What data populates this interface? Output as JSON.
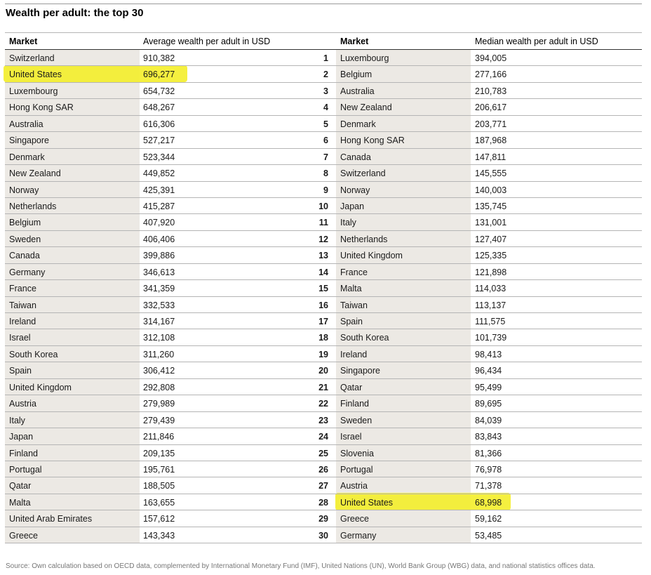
{
  "title": "Wealth per adult: the top 30",
  "headers": {
    "market_left": "Market",
    "average": "Average wealth per adult in USD",
    "market_right": "Market",
    "median": "Median wealth per adult in USD"
  },
  "highlight_color": "#f4ee2a",
  "rows": [
    {
      "avg_market": "Switzerland",
      "avg_value": "910,382",
      "rank": "1",
      "med_market": "Luxembourg",
      "med_value": "394,005"
    },
    {
      "avg_market": "United States",
      "avg_value": "696,277",
      "rank": "2",
      "med_market": "Belgium",
      "med_value": "277,166"
    },
    {
      "avg_market": "Luxembourg",
      "avg_value": "654,732",
      "rank": "3",
      "med_market": "Australia",
      "med_value": "210,783"
    },
    {
      "avg_market": "Hong Kong SAR",
      "avg_value": "648,267",
      "rank": "4",
      "med_market": "New Zealand",
      "med_value": "206,617"
    },
    {
      "avg_market": "Australia",
      "avg_value": "616,306",
      "rank": "5",
      "med_market": "Denmark",
      "med_value": "203,771"
    },
    {
      "avg_market": "Singapore",
      "avg_value": "527,217",
      "rank": "6",
      "med_market": "Hong Kong SAR",
      "med_value": "187,968"
    },
    {
      "avg_market": "Denmark",
      "avg_value": "523,344",
      "rank": "7",
      "med_market": "Canada",
      "med_value": "147,811"
    },
    {
      "avg_market": "New Zealand",
      "avg_value": "449,852",
      "rank": "8",
      "med_market": "Switzerland",
      "med_value": "145,555"
    },
    {
      "avg_market": "Norway",
      "avg_value": "425,391",
      "rank": "9",
      "med_market": "Norway",
      "med_value": "140,003"
    },
    {
      "avg_market": "Netherlands",
      "avg_value": "415,287",
      "rank": "10",
      "med_market": "Japan",
      "med_value": "135,745"
    },
    {
      "avg_market": "Belgium",
      "avg_value": "407,920",
      "rank": "11",
      "med_market": "Italy",
      "med_value": "131,001"
    },
    {
      "avg_market": "Sweden",
      "avg_value": "406,406",
      "rank": "12",
      "med_market": "Netherlands",
      "med_value": "127,407"
    },
    {
      "avg_market": "Canada",
      "avg_value": "399,886",
      "rank": "13",
      "med_market": "United Kingdom",
      "med_value": "125,335"
    },
    {
      "avg_market": "Germany",
      "avg_value": "346,613",
      "rank": "14",
      "med_market": "France",
      "med_value": "121,898"
    },
    {
      "avg_market": "France",
      "avg_value": "341,359",
      "rank": "15",
      "med_market": "Malta",
      "med_value": "114,033"
    },
    {
      "avg_market": "Taiwan",
      "avg_value": "332,533",
      "rank": "16",
      "med_market": "Taiwan",
      "med_value": "113,137"
    },
    {
      "avg_market": "Ireland",
      "avg_value": "314,167",
      "rank": "17",
      "med_market": "Spain",
      "med_value": "111,575"
    },
    {
      "avg_market": "Israel",
      "avg_value": "312,108",
      "rank": "18",
      "med_market": "South Korea",
      "med_value": "101,739"
    },
    {
      "avg_market": "South Korea",
      "avg_value": "311,260",
      "rank": "19",
      "med_market": "Ireland",
      "med_value": "98,413"
    },
    {
      "avg_market": "Spain",
      "avg_value": "306,412",
      "rank": "20",
      "med_market": "Singapore",
      "med_value": "96,434"
    },
    {
      "avg_market": "United Kingdom",
      "avg_value": "292,808",
      "rank": "21",
      "med_market": "Qatar",
      "med_value": "95,499"
    },
    {
      "avg_market": "Austria",
      "avg_value": "279,989",
      "rank": "22",
      "med_market": "Finland",
      "med_value": "89,695"
    },
    {
      "avg_market": "Italy",
      "avg_value": "279,439",
      "rank": "23",
      "med_market": "Sweden",
      "med_value": "84,039"
    },
    {
      "avg_market": "Japan",
      "avg_value": "211,846",
      "rank": "24",
      "med_market": "Israel",
      "med_value": "83,843"
    },
    {
      "avg_market": "Finland",
      "avg_value": "209,135",
      "rank": "25",
      "med_market": "Slovenia",
      "med_value": "81,366"
    },
    {
      "avg_market": "Portugal",
      "avg_value": "195,761",
      "rank": "26",
      "med_market": "Portugal",
      "med_value": "76,978"
    },
    {
      "avg_market": "Qatar",
      "avg_value": "188,505",
      "rank": "27",
      "med_market": "Austria",
      "med_value": "71,378"
    },
    {
      "avg_market": "Malta",
      "avg_value": "163,655",
      "rank": "28",
      "med_market": "United States",
      "med_value": "68,998"
    },
    {
      "avg_market": "United Arab Emirates",
      "avg_value": "157,612",
      "rank": "29",
      "med_market": "Greece",
      "med_value": "59,162"
    },
    {
      "avg_market": "Greece",
      "avg_value": "143,343",
      "rank": "30",
      "med_market": "Germany",
      "med_value": "53,485"
    }
  ],
  "footer": "Source: Own calculation based on OECD data, complemented by International Monetary Fund (IMF), United Nations (UN), World Bank Group (WBG) data, and national statistics offices data."
}
